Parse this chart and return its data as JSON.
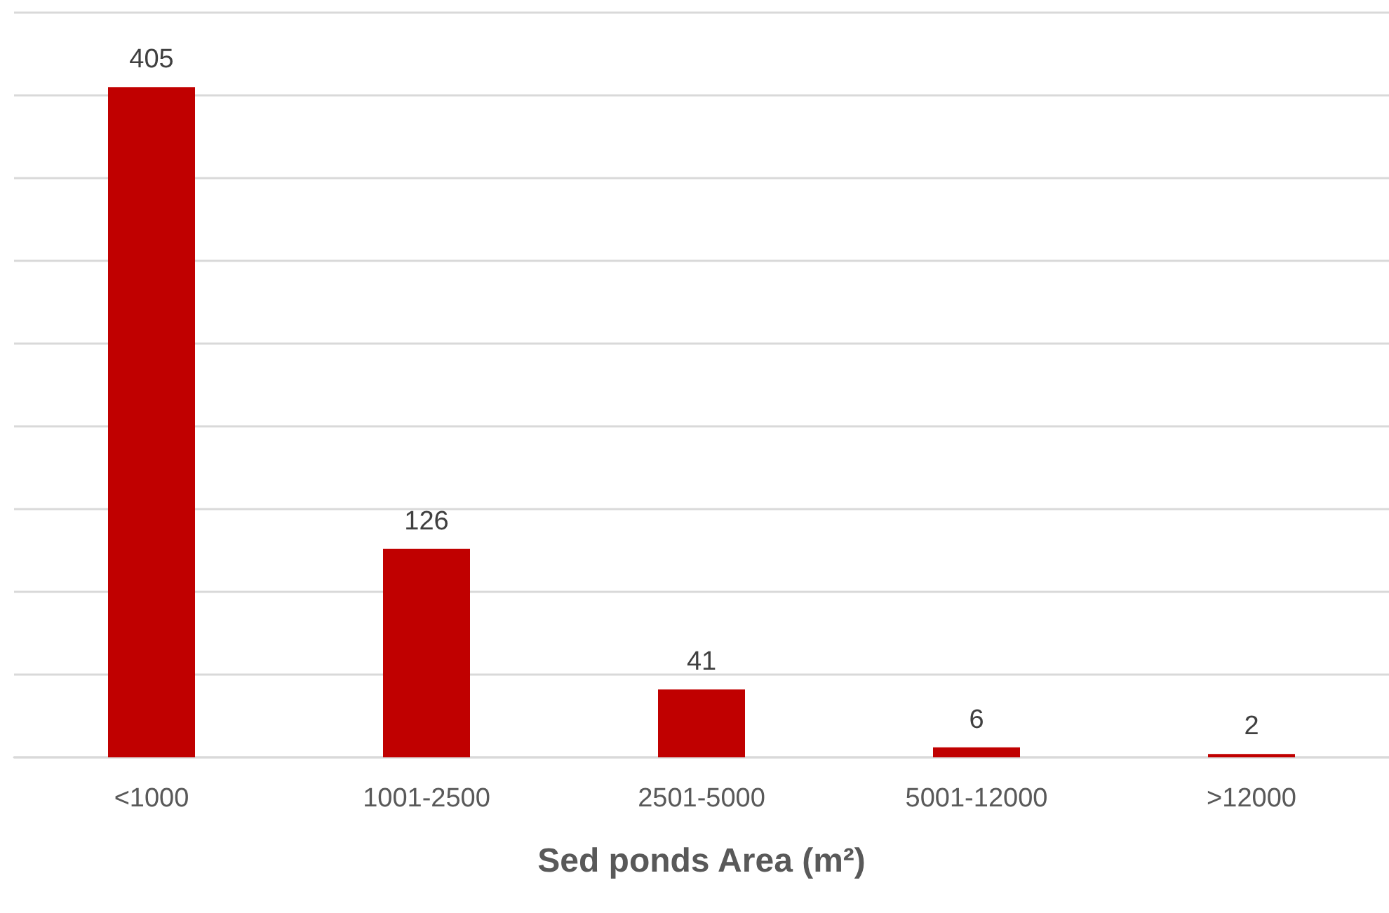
{
  "chart_data": {
    "type": "bar",
    "xlabel": "Sed ponds Area (m²)",
    "categories": [
      "<1000",
      "1001-2500",
      "2501-5000",
      "5001-12000",
      ">12000"
    ],
    "values": [
      405,
      126,
      41,
      6,
      2
    ],
    "color": "#c00000",
    "ylim": [
      0,
      450
    ],
    "yticks": [
      {
        "value": 0,
        "label": null
      },
      {
        "value": 50,
        "label": null
      },
      {
        "value": 100,
        "label": null
      },
      {
        "value": 150,
        "label": null
      },
      {
        "value": 200,
        "label": null
      },
      {
        "value": 250,
        "label": null
      },
      {
        "value": 300,
        "label": null
      },
      {
        "value": 350,
        "label": null
      },
      {
        "value": 400,
        "label": null
      },
      {
        "value": 450,
        "label": null
      }
    ],
    "tick_labels": "x",
    "grid": "y",
    "data_labels": true
  }
}
